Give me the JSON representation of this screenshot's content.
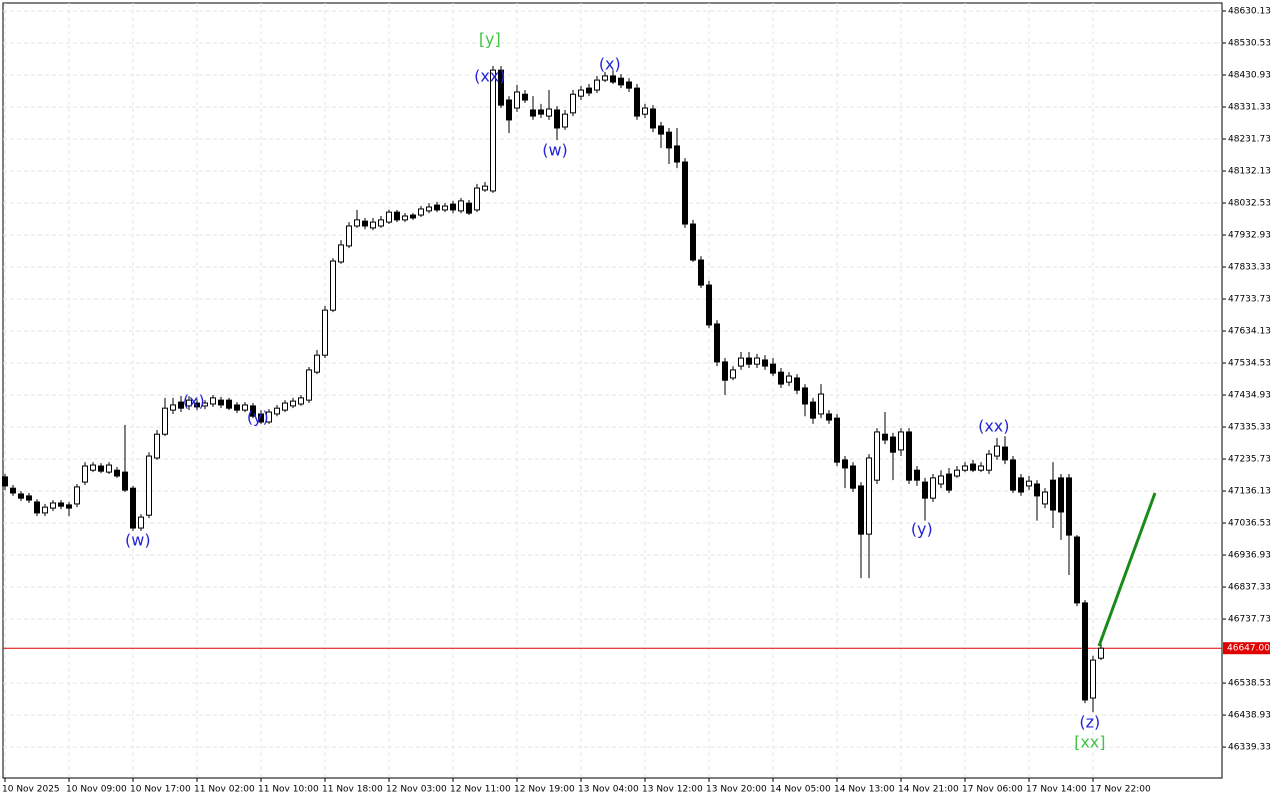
{
  "chart_data": {
    "type": "candlestick",
    "ylim": [
      46243.1,
      48654.9
    ],
    "yticks": [
      48630.13,
      48530.53,
      48430.93,
      48331.33,
      48231.73,
      48132.13,
      48032.53,
      47932.93,
      47833.33,
      47733.73,
      47634.13,
      47534.53,
      47434.93,
      47335.33,
      47235.73,
      47136.13,
      47036.53,
      46936.93,
      46837.33,
      46737.73,
      46538.53,
      46438.93,
      46339.33
    ],
    "grid": true,
    "bull_color": "#ffffff",
    "bear_color": "#000000",
    "categories": [
      "10 Nov 2025",
      null,
      null,
      null,
      null,
      null,
      null,
      null,
      "10 Nov 09:00",
      null,
      null,
      null,
      null,
      null,
      null,
      null,
      "10 Nov 17:00",
      null,
      null,
      null,
      null,
      null,
      null,
      null,
      "11 Nov 02:00",
      null,
      null,
      null,
      null,
      null,
      null,
      null,
      "11 Nov 10:00",
      null,
      null,
      null,
      null,
      null,
      null,
      null,
      "11 Nov 18:00",
      null,
      null,
      null,
      null,
      null,
      null,
      null,
      "12 Nov 03:00",
      null,
      null,
      null,
      null,
      null,
      null,
      null,
      "12 Nov 11:00",
      null,
      null,
      null,
      null,
      null,
      null,
      null,
      "12 Nov 19:00",
      null,
      null,
      null,
      null,
      null,
      null,
      null,
      "13 Nov 04:00",
      null,
      null,
      null,
      null,
      null,
      null,
      null,
      "13 Nov 12:00",
      null,
      null,
      null,
      null,
      null,
      null,
      null,
      "13 Nov 20:00",
      null,
      null,
      null,
      null,
      null,
      null,
      null,
      "14 Nov 05:00",
      null,
      null,
      null,
      null,
      null,
      null,
      null,
      "14 Nov 13:00",
      null,
      null,
      null,
      null,
      null,
      null,
      null,
      "14 Nov 21:00",
      null,
      null,
      null,
      null,
      null,
      null,
      null,
      "17 Nov 06:00",
      null,
      null,
      null,
      null,
      null,
      null,
      null,
      "17 Nov 14:00",
      null,
      null,
      null,
      null,
      null,
      null,
      null,
      "17 Nov 22:00",
      null
    ],
    "open": [
      47180,
      47145,
      47127,
      47121,
      47102,
      47068,
      47083,
      47099,
      47093,
      47096,
      47164,
      47201,
      47214,
      47195,
      47201,
      47195,
      47145,
      47021,
      47061,
      47239,
      47313,
      47388,
      47413,
      47401,
      47410,
      47401,
      47407,
      47419,
      47419,
      47404,
      47388,
      47401,
      47376,
      47351,
      47376,
      47388,
      47401,
      47407,
      47419,
      47506,
      47559,
      47699,
      47849,
      47899,
      47961,
      47976,
      47955,
      47961,
      47973,
      48004,
      47980,
      47995,
      47995,
      48008,
      48026,
      48011,
      48029,
      48008,
      48032,
      48011,
      48073,
      48070,
      48446,
      48353,
      48328,
      48371,
      48322,
      48322,
      48303,
      48322,
      48269,
      48313,
      48365,
      48390,
      48384,
      48415,
      48428,
      48421,
      48409,
      48390,
      48309,
      48325,
      48272,
      48253,
      48210,
      48160,
      47967,
      47855,
      47777,
      47656,
      47538,
      47488,
      47525,
      47550,
      47531,
      47544,
      47531,
      47506,
      47475,
      47488,
      47457,
      47413,
      47376,
      47376,
      47363,
      47233,
      47214,
      47152,
      47002,
      47170,
      47313,
      47304,
      47264,
      47320,
      47201,
      47164,
      47114,
      47158,
      47189,
      47183,
      47201,
      47220,
      47201,
      47201,
      47245,
      47273,
      47233,
      47177,
      47152,
      47158,
      47096,
      47170,
      47177,
      47177,
      46993,
      46788,
      46492,
      46616
    ],
    "high": [
      47189,
      47155,
      47136,
      47130,
      47111,
      47096,
      47108,
      47108,
      47102,
      47158,
      47226,
      47226,
      47223,
      47226,
      47211,
      47342,
      47152,
      47064,
      47257,
      47326,
      47426,
      47426,
      47432,
      47432,
      47422,
      47419,
      47435,
      47429,
      47426,
      47413,
      47413,
      47410,
      47388,
      47391,
      47404,
      47419,
      47426,
      47435,
      47522,
      47575,
      47712,
      47861,
      47917,
      47973,
      48011,
      47986,
      47986,
      47992,
      48011,
      48011,
      48001,
      48001,
      48023,
      48032,
      48036,
      48032,
      48039,
      48048,
      48042,
      48092,
      48098,
      48459,
      48459,
      48365,
      48400,
      48384,
      48365,
      48341,
      48384,
      48334,
      48322,
      48384,
      48397,
      48403,
      48428,
      48440,
      48446,
      48434,
      48421,
      48403,
      48341,
      48337,
      48285,
      48266,
      48266,
      48172,
      47980,
      47867,
      47790,
      47668,
      47550,
      47525,
      47569,
      47569,
      47563,
      47559,
      47550,
      47519,
      47506,
      47500,
      47469,
      47426,
      47469,
      47388,
      47376,
      47245,
      47226,
      47164,
      47251,
      47332,
      47382,
      47317,
      47332,
      47332,
      47214,
      47177,
      47189,
      47201,
      47208,
      47214,
      47226,
      47233,
      47226,
      47264,
      47301,
      47307,
      47245,
      47189,
      47183,
      47170,
      47145,
      47226,
      47189,
      47189,
      46999,
      46797,
      46623,
      46673
    ],
    "low": [
      47139,
      47121,
      47105,
      47099,
      47058,
      47058,
      47074,
      47080,
      47058,
      47086,
      47155,
      47195,
      47192,
      47189,
      47177,
      47133,
      47012,
      47012,
      47052,
      47233,
      47307,
      47376,
      47382,
      47388,
      47388,
      47391,
      47398,
      47394,
      47388,
      47379,
      47382,
      47363,
      47345,
      47345,
      47369,
      47382,
      47394,
      47401,
      47410,
      47500,
      47550,
      47693,
      47843,
      47892,
      47955,
      47951,
      47948,
      47955,
      47967,
      47973,
      47973,
      47980,
      47989,
      48001,
      48004,
      48004,
      48001,
      48001,
      47995,
      48004,
      48067,
      48064,
      48328,
      48250,
      48316,
      48344,
      48291,
      48297,
      48291,
      48228,
      48260,
      48303,
      48353,
      48365,
      48375,
      48409,
      48403,
      48390,
      48378,
      48291,
      48297,
      48253,
      48204,
      48154,
      48141,
      47955,
      47849,
      47768,
      47643,
      47525,
      47435,
      47481,
      47513,
      47519,
      47519,
      47513,
      47494,
      47457,
      47463,
      47438,
      47369,
      47345,
      47363,
      47345,
      47214,
      47145,
      47133,
      46865,
      46865,
      47158,
      47282,
      47170,
      47245,
      47158,
      47152,
      47044,
      47102,
      47145,
      47130,
      47177,
      47195,
      47195,
      47195,
      47189,
      47233,
      47220,
      47130,
      47121,
      47139,
      47044,
      47083,
      47021,
      46984,
      46875,
      46778,
      46476,
      46448,
      46610
    ],
    "close": [
      47152,
      47130,
      47114,
      47108,
      47068,
      47086,
      47099,
      47089,
      47083,
      47149,
      47214,
      47217,
      47198,
      47217,
      47183,
      47139,
      47021,
      47055,
      47245,
      47313,
      47394,
      47404,
      47394,
      47419,
      47398,
      47410,
      47426,
      47404,
      47394,
      47388,
      47404,
      47369,
      47351,
      47382,
      47394,
      47410,
      47416,
      47426,
      47513,
      47559,
      47699,
      47852,
      47902,
      47961,
      47980,
      47961,
      47973,
      47980,
      48004,
      47980,
      47992,
      47986,
      48014,
      48020,
      48011,
      48023,
      48011,
      48039,
      48001,
      48079,
      48085,
      48446,
      48337,
      48291,
      48378,
      48353,
      48303,
      48309,
      48325,
      48266,
      48309,
      48371,
      48384,
      48375,
      48415,
      48428,
      48409,
      48400,
      48390,
      48303,
      48328,
      48266,
      48247,
      48204,
      48160,
      47967,
      47855,
      47777,
      47653,
      47538,
      47481,
      47513,
      47550,
      47531,
      47550,
      47525,
      47503,
      47469,
      47494,
      47450,
      47407,
      47363,
      47438,
      47357,
      47226,
      47208,
      47145,
      47002,
      47239,
      47320,
      47295,
      47257,
      47320,
      47170,
      47170,
      47114,
      47177,
      47183,
      47139,
      47201,
      47214,
      47201,
      47214,
      47251,
      47276,
      47233,
      47139,
      47133,
      47167,
      47121,
      47133,
      47077,
      47071,
      46999,
      46788,
      46486,
      46610,
      46647
    ],
    "price_line": {
      "value": 46647,
      "label": "46647.00",
      "color": "#e00000"
    },
    "forecast": {
      "x": [
        136.75,
        143.75
      ],
      "y": [
        46654,
        47130
      ],
      "color": "#1a8a1a"
    },
    "annotations": [
      {
        "text": "(w)",
        "x": 16.6,
        "y": 46981,
        "color": "#2424d8"
      },
      {
        "text": "(x)",
        "x": 23.6,
        "y": 47413,
        "color": "#2424d8"
      },
      {
        "text": "(y)",
        "x": 31.6,
        "y": 47363,
        "color": "#2424d8"
      },
      {
        "text": "[y]",
        "x": 60.6,
        "y": 48540,
        "color": "#44c444"
      },
      {
        "text": "(xx)",
        "x": 60.6,
        "y": 48425,
        "color": "#2424d8"
      },
      {
        "text": "(w)",
        "x": 68.75,
        "y": 48194,
        "color": "#2424d8"
      },
      {
        "text": "(x)",
        "x": 75.6,
        "y": 48462,
        "color": "#2424d8"
      },
      {
        "text": "(y)",
        "x": 114.6,
        "y": 47015,
        "color": "#2424d8"
      },
      {
        "text": "(xx)",
        "x": 123.6,
        "y": 47335,
        "color": "#2424d8"
      },
      {
        "text": "(z)",
        "x": 135.6,
        "y": 46414,
        "color": "#2424d8"
      },
      {
        "text": "[xx]",
        "x": 135.6,
        "y": 46352,
        "color": "#44c444"
      }
    ]
  }
}
